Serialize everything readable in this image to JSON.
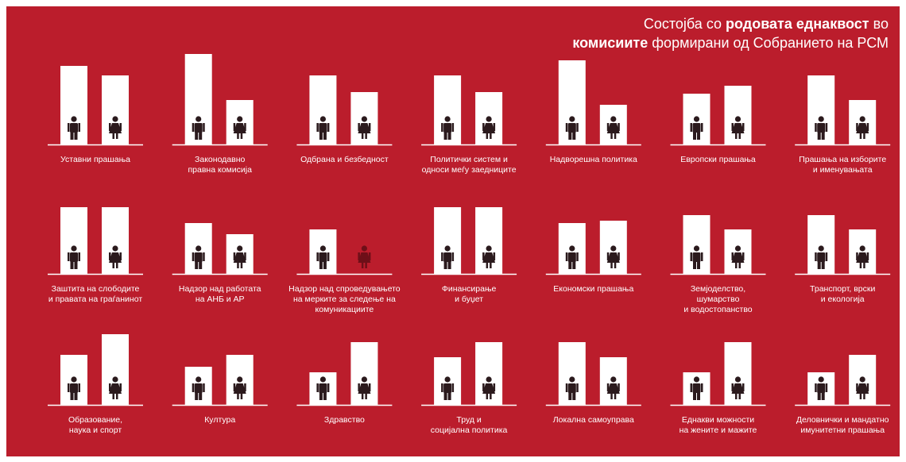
{
  "chart_data": {
    "type": "bar",
    "title_parts": [
      "Состојба со ",
      "родовата еднаквост",
      " во",
      "комисиите",
      " формирани од Собранието на РСМ"
    ],
    "categories": [
      [
        "Уставни прашања"
      ],
      [
        "Законодавно",
        "правна комисија"
      ],
      [
        "Одбрана и безбедност"
      ],
      [
        "Политички систем и",
        "односи меѓу заедниците"
      ],
      [
        "Надворешна политика"
      ],
      [
        "Европски прашања"
      ],
      [
        "Прашања на изборите",
        "и именувањата"
      ],
      [
        "Заштита на слободите",
        "и правата на граѓанинот"
      ],
      [
        "Надзор над работата",
        "на АНБ и АР"
      ],
      [
        "Надзор над спроведувањето",
        "на мерките за следење на",
        "комуникациите"
      ],
      [
        "Финансирање",
        "и буџет"
      ],
      [
        "Економски прашања"
      ],
      [
        "Земјоделство,",
        "шумарство",
        "и водостопанство"
      ],
      [
        "Транспорт, врски",
        "и екологија"
      ],
      [
        "Образование,",
        "наука и спорт"
      ],
      [
        "Култура"
      ],
      [
        "Здравство"
      ],
      [
        "Труд и",
        "социјална политика"
      ],
      [
        "Локална самоуправа"
      ],
      [
        "Еднакви можности",
        "на жените и мажите"
      ],
      [
        "Деловнички и мандатно",
        "имунитетни прашања"
      ]
    ],
    "series": [
      {
        "color": "#ffffff",
        "values": [
          99,
          114,
          87,
          87,
          106,
          64,
          87,
          84,
          64,
          56,
          84,
          64,
          74,
          74,
          63,
          48,
          41,
          60,
          79,
          41,
          41
        ]
      },
      {
        "color": "#ffffff",
        "values": [
          87,
          56,
          66,
          66,
          50,
          74,
          56,
          84,
          50,
          0,
          84,
          67,
          56,
          56,
          89,
          63,
          79,
          79,
          60,
          79,
          63
        ]
      }
    ]
  }
}
